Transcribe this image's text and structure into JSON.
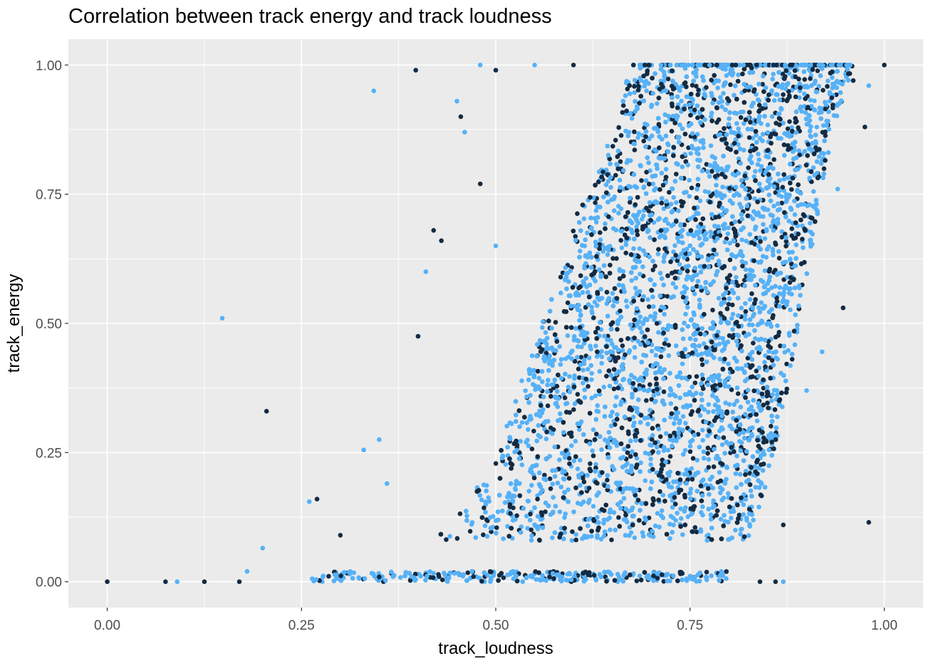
{
  "chart_data": {
    "type": "scatter",
    "title": "Correlation between track energy and track loudness",
    "xlabel": "track_loudness",
    "ylabel": "track_energy",
    "xlim": [
      -0.05,
      1.05
    ],
    "ylim": [
      -0.05,
      1.05
    ],
    "xticks": [
      0,
      0.25,
      0.5,
      0.75,
      1
    ],
    "xtick_labels": [
      "0.00",
      "0.25",
      "0.50",
      "0.75",
      "1.00"
    ],
    "yticks": [
      0,
      0.25,
      0.5,
      0.75,
      1
    ],
    "ytick_labels": [
      "0.00",
      "0.25",
      "0.50",
      "0.75",
      "1.00"
    ],
    "grid": true,
    "colors": {
      "dark": "#132B43",
      "light": "#56B1F7",
      "panel": "#EBEBEB",
      "grid": "#FFFFFF"
    },
    "dense_band": {
      "description_units": "data",
      "y": [
        0.0,
        0.05,
        0.1,
        0.25,
        0.5,
        0.75,
        0.9,
        1.0
      ],
      "x_left": [
        0.25,
        0.36,
        0.44,
        0.5,
        0.56,
        0.61,
        0.66,
        0.67
      ],
      "x_right": [
        0.8,
        0.81,
        0.83,
        0.86,
        0.89,
        0.92,
        0.94,
        0.96
      ],
      "approx_point_count": 6000
    },
    "outliers": [
      [
        0.0,
        0.0,
        "dark"
      ],
      [
        0.075,
        0.0,
        "dark"
      ],
      [
        0.09,
        0.0,
        "light"
      ],
      [
        0.125,
        0.0,
        "dark"
      ],
      [
        0.148,
        0.51,
        "light"
      ],
      [
        0.205,
        0.33,
        "dark"
      ],
      [
        0.343,
        0.95,
        "light"
      ],
      [
        0.397,
        0.99,
        "dark"
      ],
      [
        0.98,
        0.115,
        "dark"
      ],
      [
        0.947,
        0.53,
        "dark"
      ],
      [
        0.975,
        0.88,
        "dark"
      ],
      [
        1.0,
        1.0,
        "dark"
      ],
      [
        0.42,
        0.68,
        "dark"
      ],
      [
        0.43,
        0.66,
        "dark"
      ],
      [
        0.41,
        0.6,
        "light"
      ],
      [
        0.4,
        0.475,
        "dark"
      ],
      [
        0.2,
        0.065,
        "light"
      ],
      [
        0.26,
        0.155,
        "light"
      ],
      [
        0.27,
        0.16,
        "dark"
      ],
      [
        0.33,
        0.255,
        "light"
      ],
      [
        0.92,
        0.445,
        "light"
      ],
      [
        0.9,
        0.37,
        "light"
      ],
      [
        0.87,
        0.11,
        "dark"
      ],
      [
        0.455,
        0.9,
        "dark"
      ],
      [
        0.46,
        0.87,
        "light"
      ],
      [
        0.48,
        0.77,
        "dark"
      ],
      [
        0.5,
        0.65,
        "light"
      ],
      [
        0.45,
        0.93,
        "light"
      ],
      [
        0.35,
        0.275,
        "light"
      ],
      [
        0.36,
        0.19,
        "light"
      ],
      [
        0.3,
        0.09,
        "dark"
      ],
      [
        0.17,
        0.0,
        "dark"
      ],
      [
        0.18,
        0.02,
        "light"
      ],
      [
        0.86,
        0.0,
        "dark"
      ],
      [
        0.87,
        0.0,
        "light"
      ],
      [
        0.84,
        0.0,
        "dark"
      ],
      [
        0.48,
        1.0,
        "light"
      ],
      [
        0.5,
        0.99,
        "dark"
      ],
      [
        0.55,
        1.0,
        "light"
      ],
      [
        0.6,
        1.0,
        "dark"
      ],
      [
        0.94,
        0.76,
        "light"
      ],
      [
        0.96,
        0.97,
        "dark"
      ],
      [
        0.98,
        0.96,
        "light"
      ]
    ]
  }
}
